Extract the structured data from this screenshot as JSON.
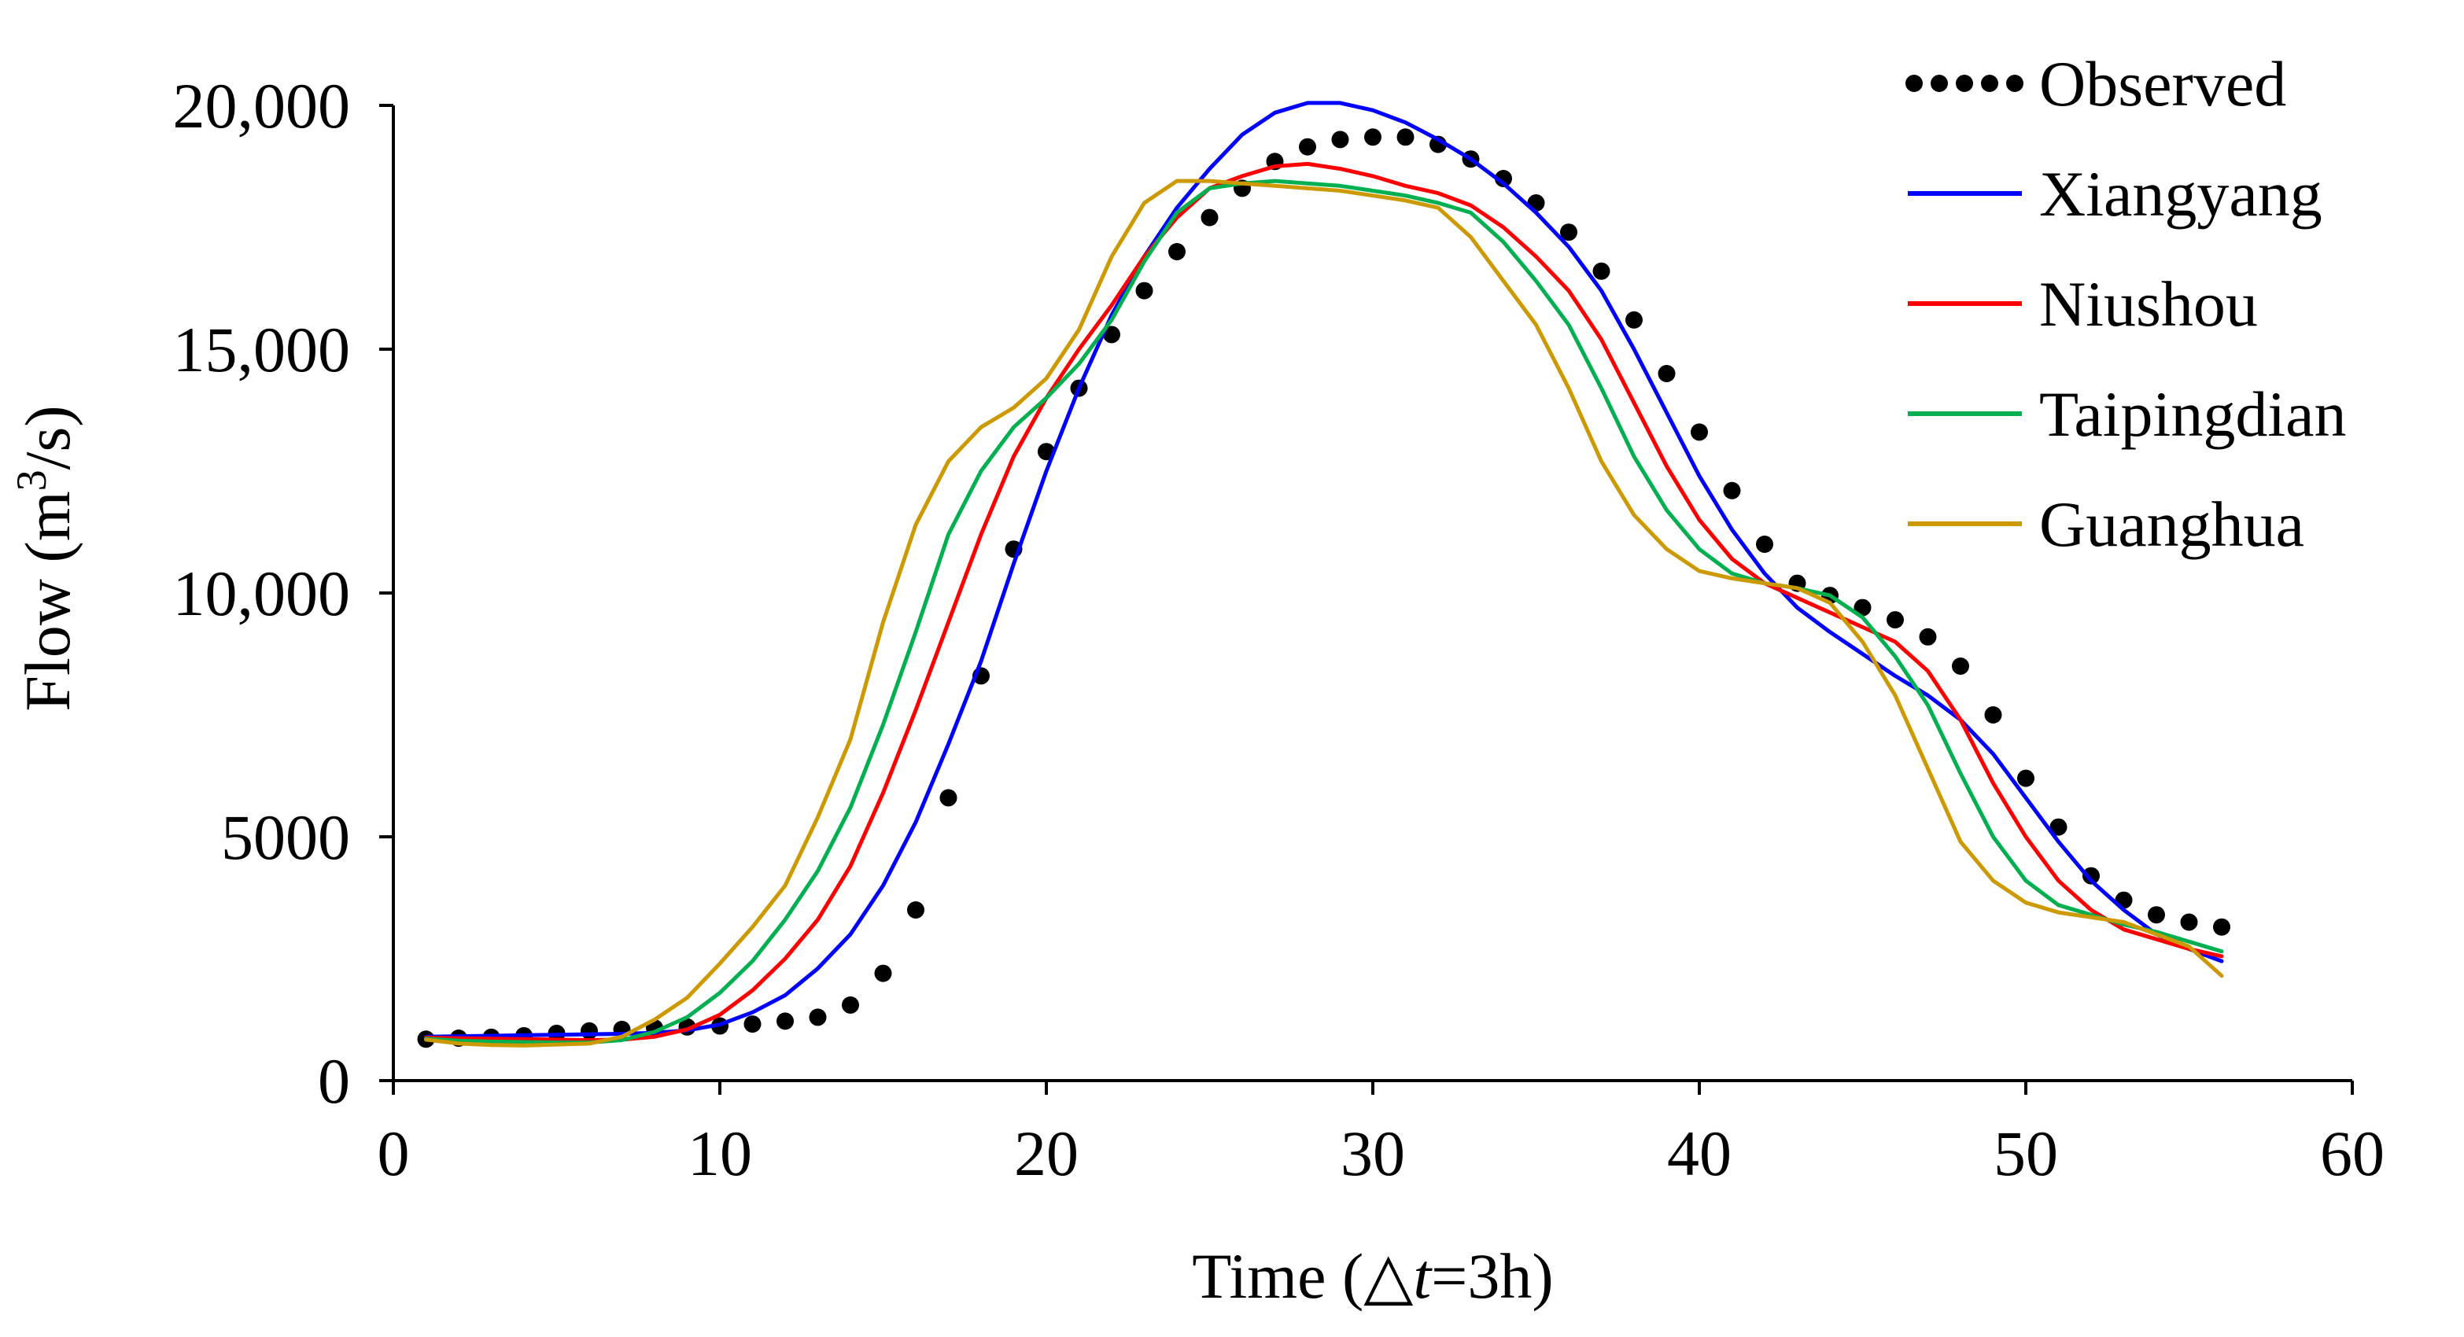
{
  "chart_data": {
    "type": "line",
    "xlabel_prefix": "Time (",
    "xlabel_delta": "△",
    "xlabel_var": "t",
    "xlabel_suffix": "=3h)",
    "ylabel_prefix": "Flow (m",
    "ylabel_sup": "3",
    "ylabel_suffix": "/s)",
    "xlim": [
      0,
      60
    ],
    "ylim": [
      0,
      20000
    ],
    "xticks": [
      0,
      10,
      20,
      30,
      40,
      50,
      60
    ],
    "xtick_labels": [
      "0",
      "10",
      "20",
      "30",
      "40",
      "50",
      "60"
    ],
    "yticks": [
      0,
      5000,
      10000,
      15000,
      20000
    ],
    "ytick_labels": [
      "0",
      "5000",
      "10,000",
      "15,000",
      "20,000"
    ],
    "grid": false,
    "legend_position": "top-right",
    "series": [
      {
        "name": "Observed",
        "style": "dotted",
        "color": "#000000",
        "x": [
          1,
          2,
          3,
          4,
          5,
          6,
          7,
          8,
          9,
          10,
          11,
          12,
          13,
          14,
          15,
          16,
          17,
          18,
          19,
          20,
          21,
          22,
          23,
          24,
          25,
          26,
          27,
          28,
          29,
          30,
          31,
          32,
          33,
          34,
          35,
          36,
          37,
          38,
          39,
          40,
          41,
          42,
          43,
          44,
          45,
          46,
          47,
          48,
          49,
          50,
          51,
          52,
          53,
          54,
          55,
          56
        ],
        "values": [
          850,
          870,
          890,
          920,
          970,
          1020,
          1050,
          1080,
          1100,
          1120,
          1160,
          1220,
          1300,
          1550,
          2200,
          3500,
          5800,
          8300,
          10900,
          12900,
          14200,
          15300,
          16200,
          17000,
          17700,
          18300,
          18850,
          19150,
          19300,
          19350,
          19350,
          19200,
          18900,
          18500,
          18000,
          17400,
          16600,
          15600,
          14500,
          13300,
          12100,
          11000,
          10200,
          9950,
          9700,
          9450,
          9100,
          8500,
          7500,
          6200,
          5200,
          4200,
          3700,
          3400,
          3250,
          3150
        ]
      },
      {
        "name": "Xiangyang",
        "style": "solid",
        "color": "#0000ff",
        "x": [
          1,
          2,
          3,
          4,
          5,
          6,
          7,
          8,
          9,
          10,
          11,
          12,
          13,
          14,
          15,
          16,
          17,
          18,
          19,
          20,
          21,
          22,
          23,
          24,
          25,
          26,
          27,
          28,
          29,
          30,
          31,
          32,
          33,
          34,
          35,
          36,
          37,
          38,
          39,
          40,
          41,
          42,
          43,
          44,
          45,
          46,
          47,
          48,
          49,
          50,
          51,
          52,
          53,
          54,
          55,
          56
        ],
        "values": [
          900,
          910,
          920,
          930,
          940,
          950,
          960,
          980,
          1030,
          1150,
          1400,
          1750,
          2300,
          3000,
          4000,
          5300,
          6900,
          8600,
          10600,
          12500,
          14200,
          15700,
          16900,
          17900,
          18700,
          19400,
          19850,
          20050,
          20050,
          19900,
          19650,
          19300,
          18900,
          18400,
          17800,
          17100,
          16200,
          15000,
          13700,
          12400,
          11300,
          10400,
          9700,
          9200,
          8750,
          8300,
          7900,
          7400,
          6700,
          5800,
          4900,
          4100,
          3500,
          3000,
          2700,
          2450
        ]
      },
      {
        "name": "Niushou",
        "style": "solid",
        "color": "#ff0000",
        "x": [
          1,
          2,
          3,
          4,
          5,
          6,
          7,
          8,
          9,
          10,
          11,
          12,
          13,
          14,
          15,
          16,
          17,
          18,
          19,
          20,
          21,
          22,
          23,
          24,
          25,
          26,
          27,
          28,
          29,
          30,
          31,
          32,
          33,
          34,
          35,
          36,
          37,
          38,
          39,
          40,
          41,
          42,
          43,
          44,
          45,
          46,
          47,
          48,
          49,
          50,
          51,
          52,
          53,
          54,
          55,
          56
        ],
        "values": [
          880,
          870,
          860,
          850,
          840,
          830,
          840,
          900,
          1050,
          1350,
          1850,
          2500,
          3300,
          4400,
          5900,
          7600,
          9400,
          11200,
          12800,
          14000,
          15000,
          15900,
          16900,
          17700,
          18300,
          18550,
          18750,
          18800,
          18700,
          18550,
          18350,
          18200,
          17950,
          17500,
          16900,
          16200,
          15200,
          13900,
          12600,
          11500,
          10700,
          10200,
          9900,
          9600,
          9300,
          9000,
          8400,
          7400,
          6100,
          5000,
          4100,
          3500,
          3100,
          2900,
          2700,
          2550
        ]
      },
      {
        "name": "Taipingdian",
        "style": "solid",
        "color": "#00b050",
        "x": [
          1,
          2,
          3,
          4,
          5,
          6,
          7,
          8,
          9,
          10,
          11,
          12,
          13,
          14,
          15,
          16,
          17,
          18,
          19,
          20,
          21,
          22,
          23,
          24,
          25,
          26,
          27,
          28,
          29,
          30,
          31,
          32,
          33,
          34,
          35,
          36,
          37,
          38,
          39,
          40,
          41,
          42,
          43,
          44,
          45,
          46,
          47,
          48,
          49,
          50,
          51,
          52,
          53,
          54,
          55,
          56
        ],
        "values": [
          860,
          820,
          800,
          790,
          780,
          780,
          830,
          1000,
          1300,
          1800,
          2450,
          3300,
          4300,
          5600,
          7300,
          9200,
          11200,
          12500,
          13400,
          14000,
          14700,
          15600,
          16800,
          17800,
          18300,
          18400,
          18450,
          18400,
          18350,
          18250,
          18150,
          18000,
          17800,
          17200,
          16400,
          15500,
          14200,
          12800,
          11700,
          10900,
          10400,
          10200,
          10100,
          9950,
          9500,
          8700,
          7700,
          6300,
          5000,
          4100,
          3600,
          3400,
          3200,
          3050,
          2850,
          2650
        ]
      },
      {
        "name": "Guanghua",
        "style": "solid",
        "color": "#cc9900",
        "x": [
          1,
          2,
          3,
          4,
          5,
          6,
          7,
          8,
          9,
          10,
          11,
          12,
          13,
          14,
          15,
          16,
          17,
          18,
          19,
          20,
          21,
          22,
          23,
          24,
          25,
          26,
          27,
          28,
          29,
          30,
          31,
          32,
          33,
          34,
          35,
          36,
          37,
          38,
          39,
          40,
          41,
          42,
          43,
          44,
          45,
          46,
          47,
          48,
          49,
          50,
          51,
          52,
          53,
          54,
          55,
          56
        ],
        "values": [
          840,
          760,
          730,
          720,
          740,
          760,
          900,
          1250,
          1700,
          2400,
          3150,
          4000,
          5400,
          7000,
          9400,
          11400,
          12700,
          13400,
          13800,
          14400,
          15400,
          16900,
          18000,
          18450,
          18450,
          18400,
          18350,
          18300,
          18250,
          18150,
          18050,
          17900,
          17300,
          16400,
          15500,
          14200,
          12700,
          11600,
          10900,
          10450,
          10300,
          10200,
          10100,
          9800,
          9000,
          7900,
          6400,
          4900,
          4100,
          3650,
          3450,
          3350,
          3250,
          3000,
          2750,
          2150
        ]
      }
    ]
  }
}
